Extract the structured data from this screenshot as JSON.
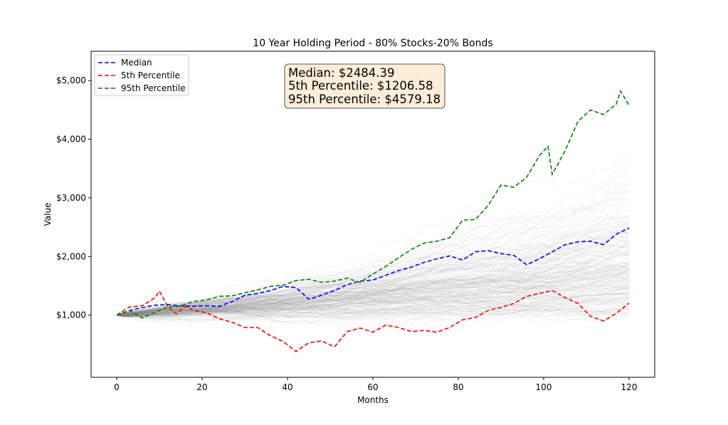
{
  "chart_data": {
    "type": "line",
    "title": "10 Year Holding Period - 80% Stocks-20% Bonds",
    "xlabel": "Months",
    "ylabel": "Value",
    "xlim": [
      -6,
      126
    ],
    "ylim": [
      -60,
      5500
    ],
    "xticks": [
      0,
      20,
      40,
      60,
      80,
      100,
      120
    ],
    "xtick_labels": [
      "0",
      "20",
      "40",
      "60",
      "80",
      "100",
      "120"
    ],
    "yticks": [
      1000,
      2000,
      3000,
      4000,
      5000
    ],
    "ytick_labels": [
      "$1,000",
      "$2,000",
      "$3,000",
      "$4,000",
      "$5,000"
    ],
    "grid": false,
    "legend_position": "top-left",
    "annotation": {
      "lines": [
        "Median: $2484.39",
        "5th Percentile: $1206.58",
        "95th Percentile: $4579.18"
      ]
    },
    "background_simulations": {
      "count": 220,
      "color": "#808080",
      "description": "Monte Carlo simulated paths starting at $1,000"
    },
    "series": [
      {
        "name": "Median",
        "color": "#0000ff",
        "style": "dashed",
        "x": [
          0,
          3,
          6,
          9,
          12,
          15,
          18,
          21,
          24,
          27,
          30,
          33,
          36,
          39,
          42,
          45,
          48,
          51,
          54,
          57,
          60,
          63,
          66,
          69,
          72,
          75,
          78,
          81,
          84,
          87,
          90,
          93,
          96,
          99,
          102,
          105,
          108,
          111,
          114,
          117,
          120
        ],
        "values": [
          1000,
          1080,
          1130,
          1170,
          1180,
          1160,
          1150,
          1160,
          1150,
          1230,
          1340,
          1370,
          1420,
          1490,
          1470,
          1270,
          1340,
          1420,
          1520,
          1580,
          1600,
          1680,
          1760,
          1820,
          1900,
          1960,
          2010,
          1940,
          2080,
          2100,
          2050,
          2020,
          1860,
          1960,
          2080,
          2200,
          2250,
          2260,
          2200,
          2380,
          2484.39
        ]
      },
      {
        "name": "5th Percentile",
        "color": "#ff0000",
        "style": "dashed",
        "x": [
          0,
          3,
          6,
          9,
          10,
          12,
          14,
          16,
          18,
          21,
          24,
          27,
          30,
          33,
          36,
          39,
          42,
          45,
          48,
          51,
          54,
          57,
          60,
          63,
          66,
          69,
          72,
          75,
          78,
          81,
          84,
          87,
          90,
          93,
          96,
          99,
          102,
          105,
          108,
          111,
          114,
          117,
          120
        ],
        "values": [
          1000,
          1140,
          1160,
          1300,
          1410,
          1140,
          1020,
          1150,
          1080,
          1040,
          940,
          880,
          790,
          790,
          650,
          550,
          380,
          530,
          560,
          460,
          720,
          780,
          710,
          830,
          790,
          720,
          740,
          710,
          790,
          920,
          960,
          1080,
          1130,
          1200,
          1320,
          1370,
          1420,
          1300,
          1200,
          980,
          900,
          1030,
          1206.58
        ]
      },
      {
        "name": "95th Percentile",
        "color": "#008000",
        "style": "dashed",
        "x": [
          0,
          3,
          6,
          9,
          12,
          15,
          18,
          21,
          24,
          27,
          30,
          33,
          36,
          39,
          42,
          45,
          48,
          51,
          54,
          57,
          60,
          63,
          66,
          69,
          72,
          75,
          78,
          81,
          84,
          87,
          90,
          93,
          96,
          99,
          101,
          102,
          105,
          108,
          111,
          114,
          117,
          118,
          120
        ],
        "values": [
          1000,
          1080,
          950,
          1050,
          1140,
          1160,
          1230,
          1260,
          1320,
          1330,
          1380,
          1430,
          1490,
          1510,
          1590,
          1610,
          1560,
          1580,
          1630,
          1560,
          1700,
          1830,
          1980,
          2120,
          2230,
          2260,
          2320,
          2620,
          2630,
          2870,
          3220,
          3180,
          3350,
          3720,
          3880,
          3400,
          3800,
          4300,
          4500,
          4420,
          4600,
          4820,
          4579.18
        ]
      }
    ]
  }
}
